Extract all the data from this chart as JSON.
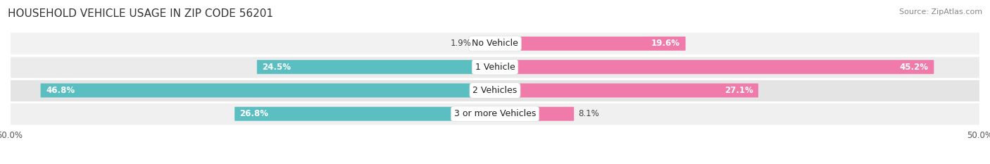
{
  "title": "HOUSEHOLD VEHICLE USAGE IN ZIP CODE 56201",
  "source": "Source: ZipAtlas.com",
  "categories": [
    "No Vehicle",
    "1 Vehicle",
    "2 Vehicles",
    "3 or more Vehicles"
  ],
  "owner_values": [
    1.9,
    24.5,
    46.8,
    26.8
  ],
  "renter_values": [
    19.6,
    45.2,
    27.1,
    8.1
  ],
  "owner_color": "#5bbfc2",
  "renter_color": "#f07aaa",
  "row_bg_color_odd": "#f0f0f0",
  "row_bg_color_even": "#e8e8e8",
  "axis_max": 50.0,
  "title_fontsize": 11,
  "source_fontsize": 8,
  "bar_label_fontsize": 8.5,
  "category_fontsize": 9,
  "axis_fontsize": 8.5,
  "legend_fontsize": 8.5
}
